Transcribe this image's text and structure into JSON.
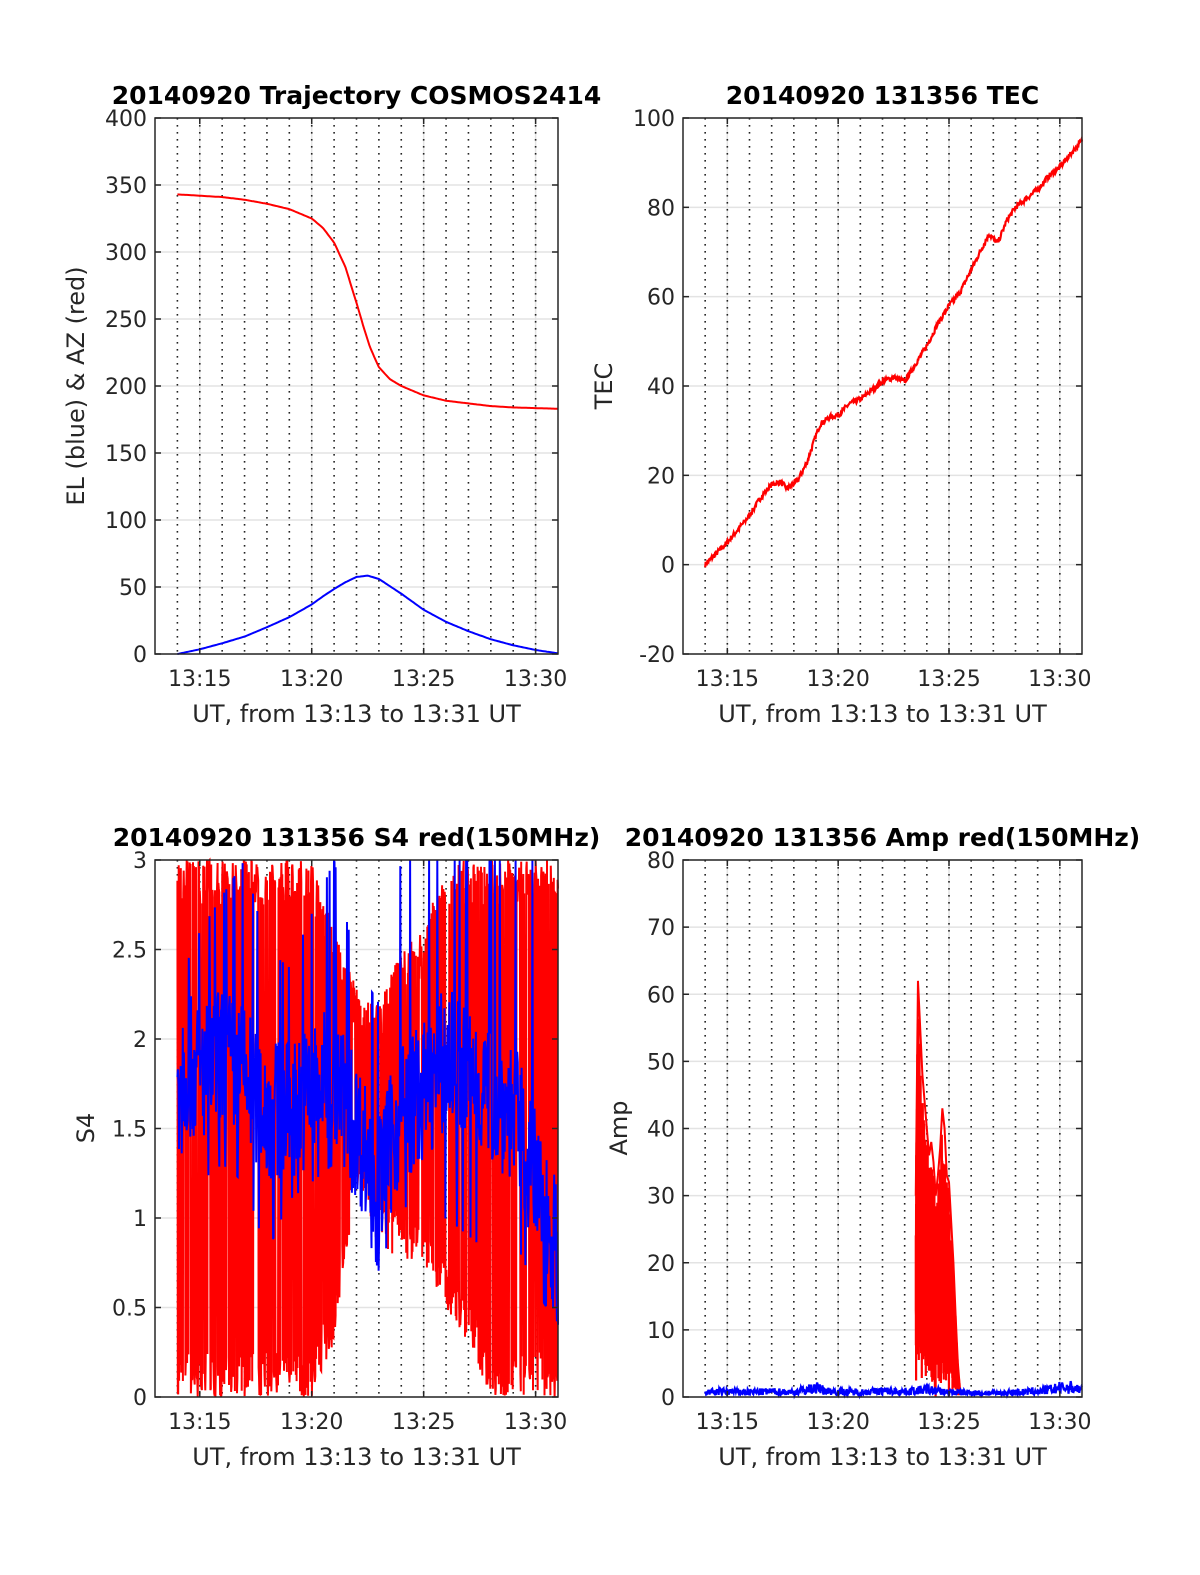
{
  "chart_data": [
    {
      "id": "trajectory",
      "type": "line",
      "title": "20140920 Trajectory COSMOS2414",
      "xlabel": "UT, from 13:13 to 13:31 UT",
      "ylabel": "EL (blue) & AZ (red)",
      "xlim": [
        13.0,
        31.0
      ],
      "ylim": [
        0,
        400
      ],
      "xticks": [
        15,
        20,
        25,
        30
      ],
      "xtick_labels": [
        "13:15",
        "13:20",
        "13:25",
        "13:30"
      ],
      "yticks": [
        0,
        50,
        100,
        150,
        200,
        250,
        300,
        350,
        400
      ],
      "ytick_labels": [
        "0",
        "50",
        "100",
        "150",
        "200",
        "250",
        "300",
        "350",
        "400"
      ],
      "grid": true,
      "dotted_minute_lines": true,
      "series": [
        {
          "color": "#ff0000",
          "x": [
            14.0,
            15.0,
            16.0,
            17.0,
            18.0,
            19.0,
            20.0,
            20.5,
            21.0,
            21.5,
            22.0,
            22.3,
            22.6,
            23.0,
            23.5,
            24.0,
            25.0,
            26.0,
            27.0,
            28.0,
            29.0,
            30.0,
            31.0
          ],
          "y": [
            343,
            342,
            341,
            339,
            336,
            332,
            325,
            318,
            307,
            289,
            262,
            245,
            229,
            214,
            205,
            200,
            193,
            189,
            187,
            185,
            184,
            183.5,
            183
          ]
        },
        {
          "color": "#0000ff",
          "x": [
            14.0,
            15.0,
            16.0,
            17.0,
            18.0,
            19.0,
            20.0,
            20.5,
            21.0,
            21.5,
            22.0,
            22.5,
            23.0,
            23.5,
            24.0,
            25.0,
            26.0,
            27.0,
            28.0,
            29.0,
            30.0,
            31.0
          ],
          "y": [
            0,
            3.5,
            8,
            13,
            20,
            27.5,
            37,
            43,
            48.5,
            53.5,
            57.5,
            58.5,
            56,
            50.5,
            45,
            33,
            24,
            17,
            11,
            6.5,
            3,
            0.5
          ]
        }
      ]
    },
    {
      "id": "tec",
      "type": "line",
      "title": "20140920 131356 TEC",
      "xlabel": "UT, from 13:13 to 13:31 UT",
      "ylabel": "TEC",
      "xlim": [
        13.0,
        31.0
      ],
      "ylim": [
        -20,
        100
      ],
      "xticks": [
        15,
        20,
        25,
        30
      ],
      "xtick_labels": [
        "13:15",
        "13:20",
        "13:25",
        "13:30"
      ],
      "yticks": [
        -20,
        0,
        20,
        40,
        60,
        80,
        100
      ],
      "ytick_labels": [
        "-20",
        "0",
        "20",
        "40",
        "60",
        "80",
        "100"
      ],
      "grid": true,
      "dotted_minute_lines": true,
      "series": [
        {
          "color": "#ff0000",
          "x": [
            14.0,
            14.3,
            14.6,
            15.0,
            15.5,
            16.0,
            16.5,
            17.0,
            17.4,
            17.7,
            18.2,
            18.6,
            19.0,
            19.2,
            19.6,
            20.0,
            20.5,
            21.0,
            21.5,
            22.0,
            22.5,
            23.0,
            23.5,
            24.0,
            24.5,
            25.0,
            25.5,
            26.0,
            26.4,
            26.8,
            27.2,
            27.6,
            28.0,
            28.5,
            29.0,
            29.5,
            30.0,
            30.5,
            31.0
          ],
          "y": [
            0,
            1.5,
            3,
            5,
            8,
            11,
            15,
            18,
            18.5,
            17,
            19,
            23,
            29,
            31.5,
            33,
            33.5,
            36,
            37,
            39,
            41,
            42,
            41,
            45,
            49,
            54,
            58,
            61,
            66,
            70,
            74,
            72,
            77,
            80,
            82,
            84,
            87,
            89,
            92,
            95
          ]
        }
      ]
    },
    {
      "id": "s4",
      "type": "line",
      "title": "20140920 131356 S4 red(150MHz)",
      "xlabel": "UT, from 13:13 to 13:31 UT",
      "ylabel": "S4",
      "xlim": [
        13.0,
        31.0
      ],
      "ylim": [
        0,
        3
      ],
      "xticks": [
        15,
        20,
        25,
        30
      ],
      "xtick_labels": [
        "13:15",
        "13:20",
        "13:25",
        "13:30"
      ],
      "yticks": [
        0,
        0.5,
        1,
        1.5,
        2,
        2.5,
        3
      ],
      "ytick_labels": [
        "0",
        "0.5",
        "1",
        "1.5",
        "2",
        "2.5",
        "3"
      ],
      "grid": true,
      "dotted_minute_lines": true,
      "series": [
        {
          "color": "#ff0000",
          "x": [
            14.0,
            15.0,
            16.0,
            17.0,
            18.0,
            19.0,
            20.0,
            21.0,
            22.0,
            23.0,
            24.0,
            25.0,
            26.0,
            27.0,
            28.0,
            29.0,
            30.0,
            31.0
          ],
          "low": [
            0,
            0,
            0,
            0,
            0,
            0,
            0,
            0.3,
            1.2,
            0.8,
            0.8,
            0.7,
            0.5,
            0.3,
            0,
            0,
            0,
            0
          ],
          "high": [
            3,
            3,
            3,
            3,
            3,
            3,
            3,
            2.6,
            2.3,
            2.2,
            2.5,
            2.6,
            3,
            3,
            3,
            3,
            3,
            3
          ]
        },
        {
          "color": "#0000ff",
          "x": [
            14.0,
            15.0,
            16.0,
            17.0,
            18.0,
            19.0,
            20.0,
            21.0,
            22.0,
            23.0,
            24.0,
            25.0,
            26.0,
            27.0,
            28.0,
            29.0,
            30.0,
            31.0
          ],
          "mean": [
            1.9,
            1.8,
            1.9,
            1.8,
            1.6,
            1.6,
            1.7,
            1.8,
            1.5,
            1.2,
            1.6,
            1.7,
            1.9,
            1.8,
            1.7,
            1.6,
            1.2,
            0.8
          ],
          "low": [
            1.4,
            1.2,
            1.3,
            1.2,
            0.8,
            1.1,
            1.2,
            1.3,
            1.1,
            0.7,
            1.1,
            0.9,
            1.0,
            0.9,
            0.8,
            0.9,
            0.6,
            0.4
          ],
          "high": [
            2.3,
            2.6,
            2.8,
            3,
            2.5,
            2.4,
            2.7,
            3,
            2.4,
            2.2,
            3,
            3,
            3,
            3,
            3,
            3,
            3,
            1.5
          ]
        }
      ]
    },
    {
      "id": "amp",
      "type": "line",
      "title": "20140920 131356 Amp red(150MHz)",
      "xlabel": "UT, from 13:13 to 13:31 UT",
      "ylabel": "Amp",
      "xlim": [
        13.0,
        31.0
      ],
      "ylim": [
        0,
        80
      ],
      "xticks": [
        15,
        20,
        25,
        30
      ],
      "xtick_labels": [
        "13:15",
        "13:20",
        "13:25",
        "13:30"
      ],
      "yticks": [
        0,
        10,
        20,
        30,
        40,
        50,
        60,
        70,
        80
      ],
      "ytick_labels": [
        "0",
        "10",
        "20",
        "30",
        "40",
        "50",
        "60",
        "70",
        "80"
      ],
      "grid": true,
      "dotted_minute_lines": true,
      "series": [
        {
          "color": "#ff0000",
          "x": [
            23.5,
            23.6,
            23.7,
            23.8,
            23.9,
            24.0,
            24.1,
            24.2,
            24.3,
            24.4,
            24.5,
            24.6,
            24.7,
            24.8,
            24.9,
            25.0,
            25.1,
            25.2,
            25.3,
            25.4,
            25.5
          ],
          "y": [
            30,
            62,
            55,
            48,
            44,
            40,
            36,
            38,
            35,
            30,
            33,
            37,
            43,
            40,
            33,
            32,
            26,
            20,
            12,
            5,
            1
          ]
        },
        {
          "color": "#0000ff",
          "x": [
            14.0,
            15.0,
            16.0,
            17.0,
            18.0,
            19.0,
            19.5,
            20.0,
            21.0,
            22.0,
            23.0,
            24.0,
            25.0,
            26.0,
            27.0,
            28.0,
            29.0,
            30.0,
            30.5,
            31.0
          ],
          "y": [
            0.8,
            0.9,
            0.8,
            0.9,
            0.8,
            1.5,
            1.0,
            0.9,
            0.8,
            1.0,
            0.9,
            1.2,
            0.8,
            0.7,
            0.6,
            0.8,
            0.9,
            1.5,
            1.6,
            1.2
          ]
        }
      ]
    }
  ]
}
